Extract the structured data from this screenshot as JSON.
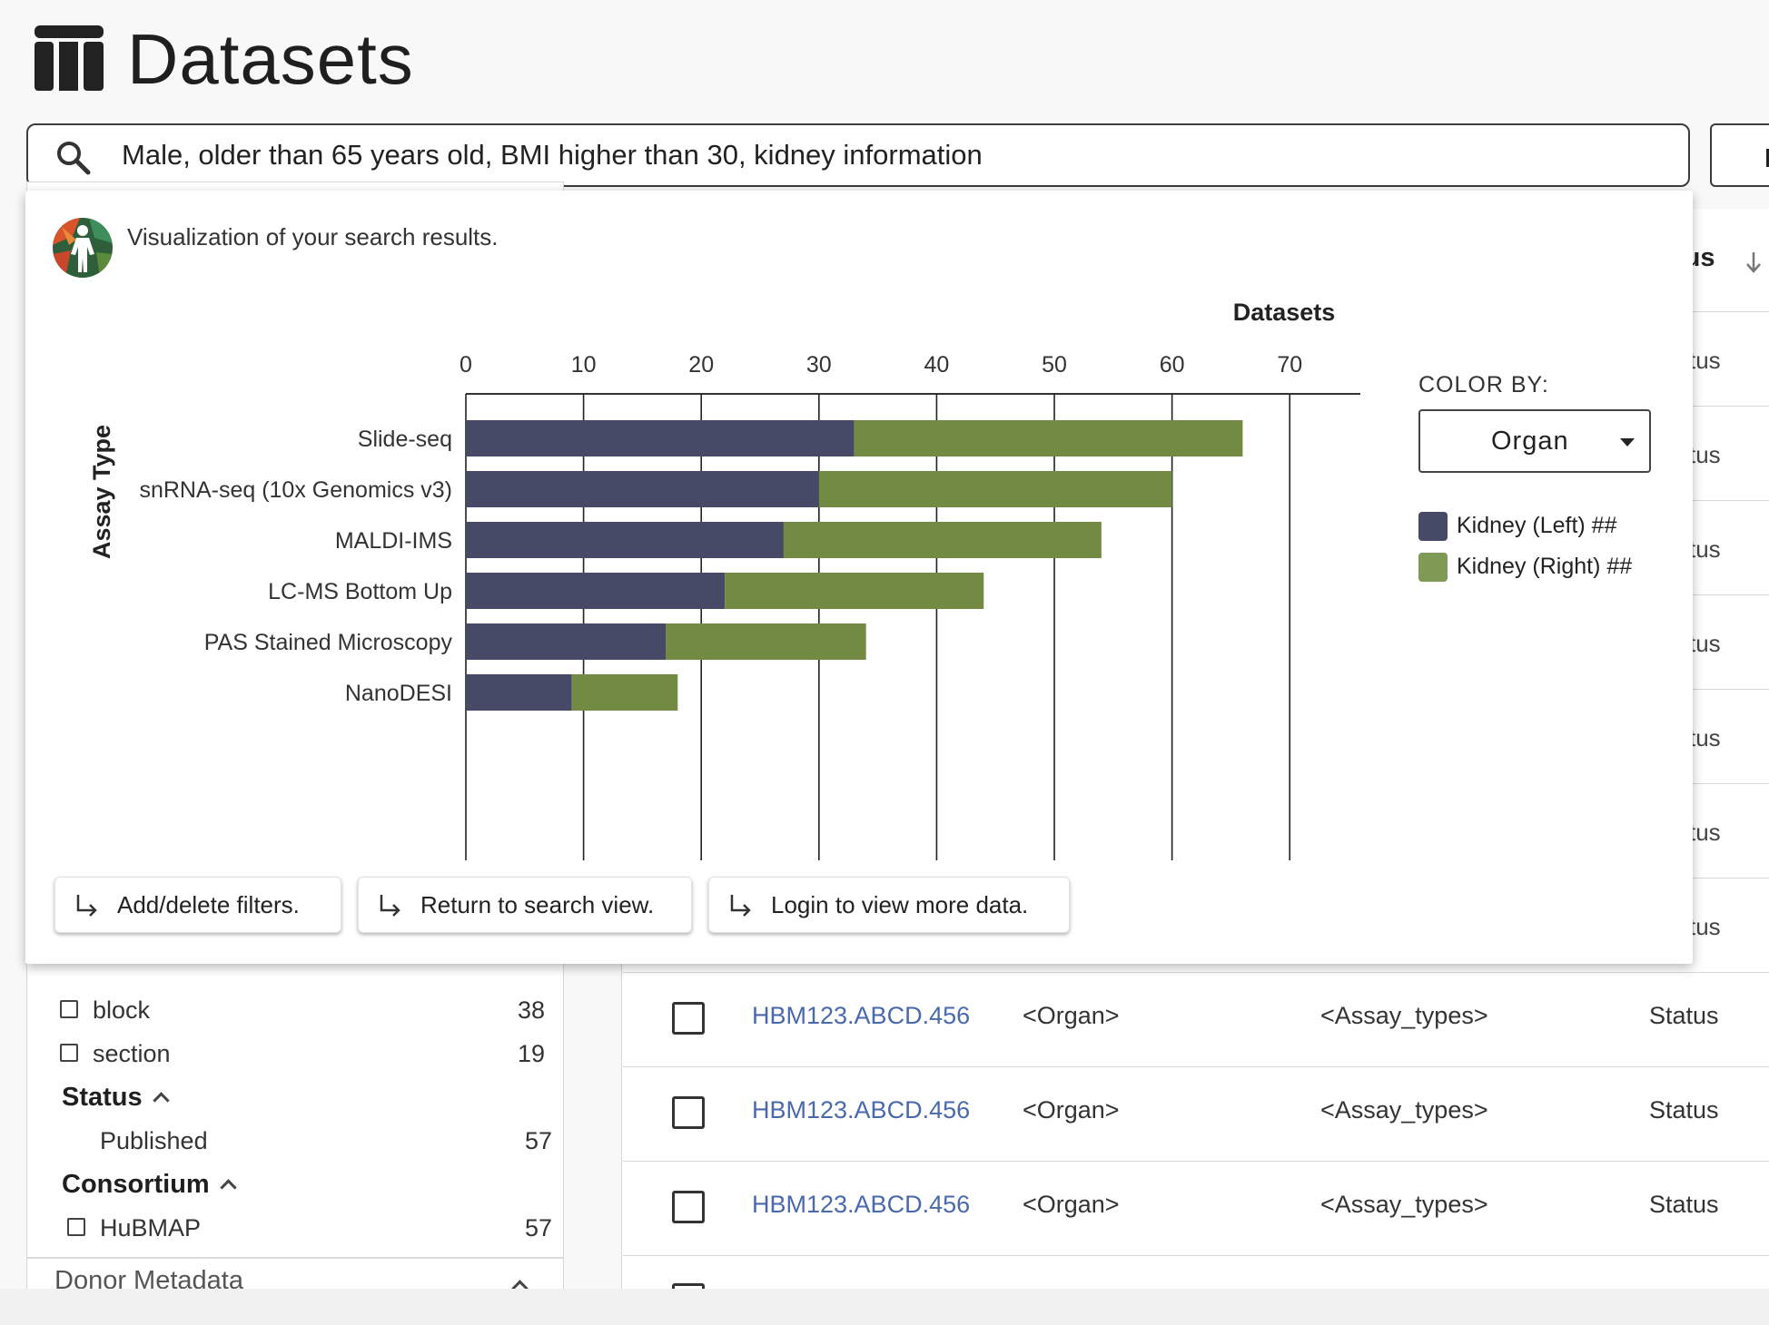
{
  "header": {
    "title": "Datasets",
    "icon": "table-icon"
  },
  "search": {
    "value": "Male, older than 65 years old, BMI higher than 30, kidney information",
    "icon": "search-icon"
  },
  "popup": {
    "subtitle": "Visualization of your search results.",
    "color_by_label": "COLOR BY:",
    "color_by_value": "Organ",
    "legend": [
      {
        "label": "Kidney (Left) ##",
        "color": "#464a67"
      },
      {
        "label": "Kidney (Right) ##",
        "color": "#7e9a55"
      }
    ],
    "actions": [
      {
        "label": "Add/delete filters."
      },
      {
        "label": "Return to search view."
      },
      {
        "label": "Login to view more data."
      }
    ]
  },
  "chart_data": {
    "type": "bar",
    "orientation": "horizontal",
    "stacked": true,
    "title": "Datasets",
    "xlabel": "Datasets",
    "ylabel": "Assay Type",
    "xlim": [
      0,
      76
    ],
    "x_ticks": [
      0,
      10,
      20,
      30,
      40,
      50,
      60,
      70
    ],
    "categories": [
      "Slide-seq",
      "snRNA-seq (10x Genomics v3)",
      "MALDI-IMS",
      "LC-MS Bottom Up",
      "PAS Stained Microscopy",
      "NanoDESI"
    ],
    "series": [
      {
        "name": "Kidney (Left) ##",
        "color": "#464a67",
        "values": [
          33,
          30,
          27,
          22,
          17,
          9
        ]
      },
      {
        "name": "Kidney (Right) ##",
        "color": "#738a42",
        "values": [
          33,
          30,
          27,
          22,
          17,
          9
        ]
      }
    ],
    "grid": true,
    "legend_position": "right"
  },
  "sidebar": {
    "sample_category_items": [
      {
        "label": "block",
        "count": "38"
      },
      {
        "label": "section",
        "count": "19"
      }
    ],
    "status_heading": "Status",
    "status_items": [
      {
        "label": "Published",
        "count": "57"
      }
    ],
    "consortium_heading": "Consortium",
    "consortium_items": [
      {
        "label": "HuBMAP",
        "count": "57"
      }
    ],
    "next_section": "Donor Metadata"
  },
  "table": {
    "status_header": "tus",
    "status_fragment": "tus",
    "rows": [
      {
        "id": "HBM123.ABCD.456",
        "organ": "<Organ>",
        "assay": "<Assay_types>",
        "status": "Status"
      },
      {
        "id": "HBM123.ABCD.456",
        "organ": "<Organ>",
        "assay": "<Assay_types>",
        "status": "Status"
      },
      {
        "id": "HBM123.ABCD.456",
        "organ": "<Organ>",
        "assay": "<Assay_types>",
        "status": "Status"
      }
    ]
  }
}
